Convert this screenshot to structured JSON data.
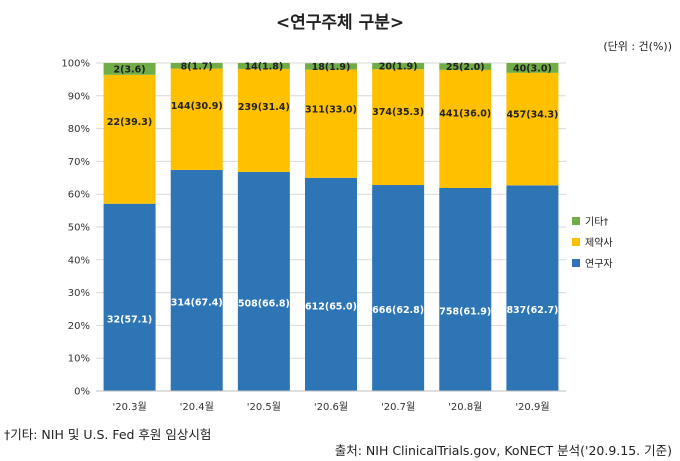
{
  "title": "<연구주체 구분>",
  "unit": "(단위 : 건(%))",
  "footnote": "†기타: NIH 및 U.S. Fed 후원 임상시험",
  "source": "출처: NIH ClinicalTrials.gov, KoNECT 분석('20.9.15. 기준)",
  "colors": {
    "research": "#2E75B6",
    "pharma": "#FFC000",
    "other": "#70AD47"
  },
  "chart_data": {
    "type": "bar",
    "stacked": true,
    "normalized": true,
    "categories": [
      "'20.3월",
      "'20.4월",
      "'20.5월",
      "'20.6월",
      "'20.7월",
      "'20.8월",
      "'20.9월"
    ],
    "yticks": [
      "0%",
      "10%",
      "20%",
      "30%",
      "40%",
      "50%",
      "60%",
      "70%",
      "80%",
      "90%",
      "100%"
    ],
    "ylim": [
      0,
      100
    ],
    "legend_position": "right",
    "series": [
      {
        "name": "연구자",
        "color_key": "research",
        "counts": [
          32,
          314,
          508,
          612,
          666,
          758,
          837
        ],
        "percents": [
          57.1,
          67.4,
          66.8,
          65.0,
          62.8,
          61.9,
          62.7
        ],
        "labels": [
          "32(57.1)",
          "314(67.4)",
          "508(66.8)",
          "612(65.0)",
          "666(62.8)",
          "758(61.9)",
          "837(62.7)"
        ]
      },
      {
        "name": "제약사",
        "color_key": "pharma",
        "counts": [
          22,
          144,
          239,
          311,
          374,
          441,
          457
        ],
        "percents": [
          39.3,
          30.9,
          31.4,
          33.0,
          35.3,
          36.0,
          34.3
        ],
        "labels": [
          "22(39.3)",
          "144(30.9)",
          "239(31.4)",
          "311(33.0)",
          "374(35.3)",
          "441(36.0)",
          "457(34.3)"
        ]
      },
      {
        "name": "기타†",
        "color_key": "other",
        "counts": [
          2,
          8,
          14,
          18,
          20,
          25,
          40
        ],
        "percents": [
          3.6,
          1.7,
          1.8,
          1.9,
          1.9,
          2.0,
          3.0
        ],
        "labels": [
          "2(3.6)",
          "8(1.7)",
          "14(1.8)",
          "18(1.9)",
          "20(1.9)",
          "25(2.0)",
          "40(3.0)"
        ]
      }
    ]
  }
}
